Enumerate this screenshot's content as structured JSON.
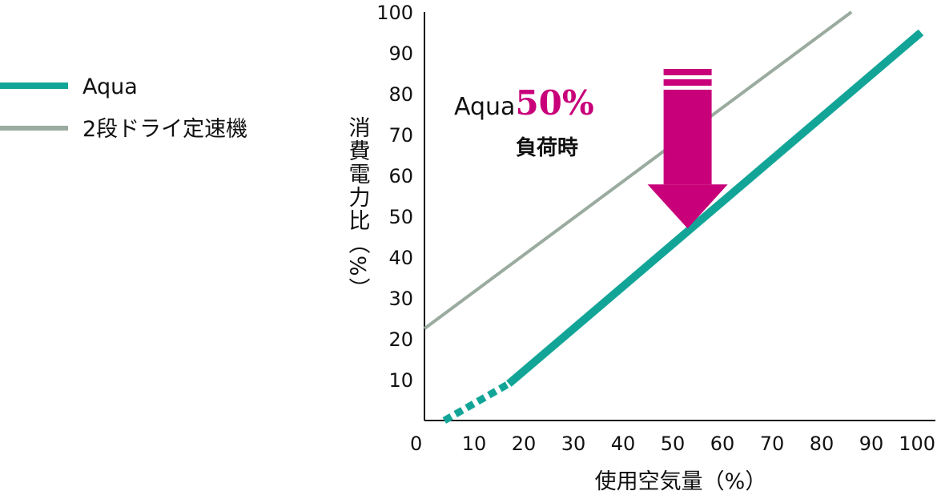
{
  "chart_data": {
    "type": "line",
    "xlabel": "使用空気量（%）",
    "ylabel": "消費電力比（%）",
    "xlim": [
      0,
      100
    ],
    "ylim": [
      0,
      100
    ],
    "x_ticks": [
      "0",
      "10",
      "20",
      "30",
      "40",
      "50",
      "60",
      "70",
      "80",
      "90",
      "100"
    ],
    "y_ticks": [
      "10",
      "20",
      "30",
      "40",
      "50",
      "60",
      "70",
      "80",
      "90",
      "100"
    ],
    "grid": false,
    "legend_position": "left",
    "series": [
      {
        "name": "Aqua",
        "color": "#12a597",
        "line_style": "solid-thick",
        "dashed_segment": [
          [
            4,
            0
          ],
          [
            17,
            9
          ]
        ],
        "solid_segment": [
          [
            17,
            9
          ],
          [
            100,
            95
          ]
        ]
      },
      {
        "name": "2段ドライ定速機",
        "color": "#9aab9f",
        "line_style": "solid-thin",
        "solid_segment": [
          [
            0,
            22.5
          ],
          [
            86,
            100
          ]
        ]
      }
    ],
    "annotation": {
      "prefix": "Aqua",
      "highlight": "50%",
      "subtext": "負荷時",
      "arrow_color": "#c8007a",
      "arrow_from": [
        53,
        90
      ],
      "arrow_to": [
        53,
        47
      ]
    }
  }
}
